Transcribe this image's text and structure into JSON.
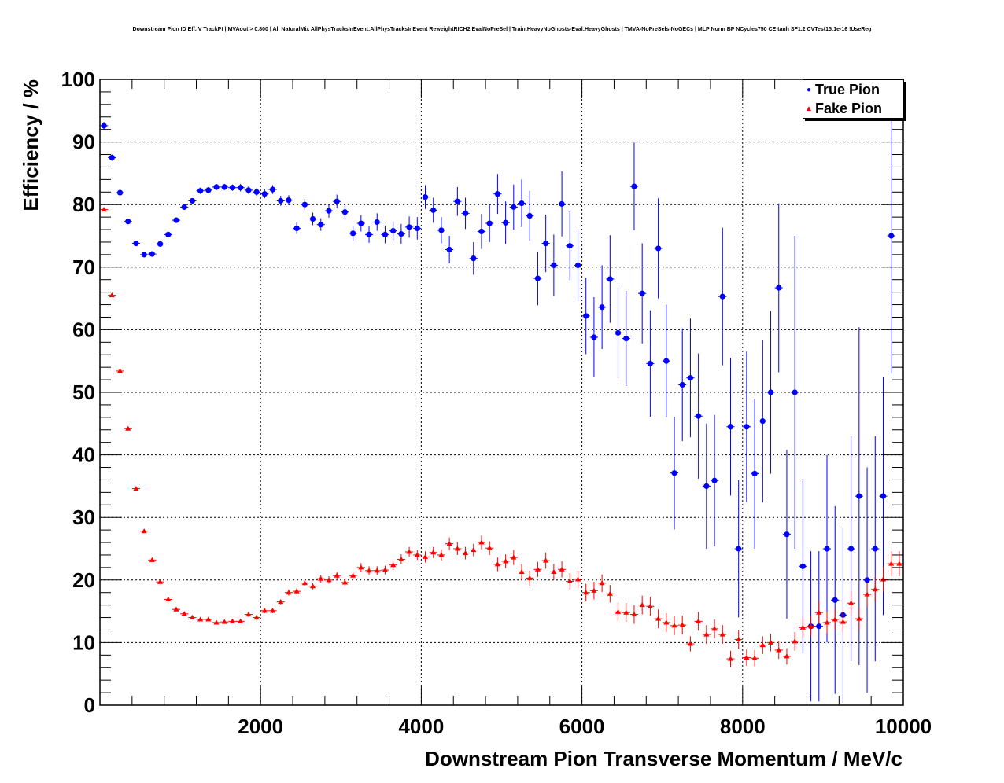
{
  "chart_data": {
    "type": "scatter",
    "title": "Downstream Pion ID Eff. V TrackPt | MVAout > 0.800 | All NaturalMix AllPhysTracksInEvent:AllPhysTracksInEvent ReweightRICH2 EvalNoPreSel | Train:HeavyNoGhosts-Eval:HeavyGhosts | TMVA-NoPreSels-NoGECs | MLP Norm BP NCycles750 CE tanh SF1.2 CVTest15:1e-16 !UseReg",
    "xlabel": "Downstream Pion Transverse Momentum / MeV/c",
    "ylabel": "Efficiency / %",
    "xlim": [
      0,
      10000
    ],
    "ylim": [
      0,
      100
    ],
    "x_ticks": [
      "2000",
      "4000",
      "6000",
      "8000",
      "10000"
    ],
    "y_ticks": [
      "0",
      "10",
      "20",
      "30",
      "40",
      "50",
      "60",
      "70",
      "80",
      "90",
      "100"
    ],
    "grid": true,
    "legend_position": "top-right",
    "series": [
      {
        "name": "True Pion",
        "color": "#0000ff",
        "marker": "circle",
        "points": [
          [
            50,
            92.6,
            0.6
          ],
          [
            150,
            87.5,
            0.5
          ],
          [
            250,
            81.9,
            0.4
          ],
          [
            350,
            77.3,
            0.4
          ],
          [
            450,
            73.8,
            0.4
          ],
          [
            550,
            72.0,
            0.4
          ],
          [
            650,
            72.1,
            0.4
          ],
          [
            750,
            73.7,
            0.4
          ],
          [
            850,
            75.2,
            0.4
          ],
          [
            950,
            77.5,
            0.4
          ],
          [
            1050,
            79.6,
            0.4
          ],
          [
            1150,
            80.6,
            0.4
          ],
          [
            1250,
            82.2,
            0.5
          ],
          [
            1350,
            82.3,
            0.5
          ],
          [
            1450,
            82.8,
            0.5
          ],
          [
            1550,
            82.8,
            0.5
          ],
          [
            1650,
            82.7,
            0.5
          ],
          [
            1750,
            82.7,
            0.6
          ],
          [
            1850,
            82.3,
            0.6
          ],
          [
            1950,
            82.0,
            0.6
          ],
          [
            2050,
            81.7,
            0.7
          ],
          [
            2150,
            82.4,
            0.7
          ],
          [
            2250,
            80.6,
            0.8
          ],
          [
            2350,
            80.7,
            0.8
          ],
          [
            2450,
            76.2,
            0.9
          ],
          [
            2550,
            80.0,
            0.9
          ],
          [
            2650,
            77.7,
            1.0
          ],
          [
            2750,
            76.8,
            1.0
          ],
          [
            2850,
            79.0,
            1.1
          ],
          [
            2950,
            80.5,
            1.1
          ],
          [
            3050,
            78.8,
            1.2
          ],
          [
            3150,
            75.4,
            1.2
          ],
          [
            3250,
            77.0,
            1.3
          ],
          [
            3350,
            75.2,
            1.3
          ],
          [
            3450,
            77.2,
            1.4
          ],
          [
            3550,
            75.2,
            1.4
          ],
          [
            3650,
            75.8,
            1.5
          ],
          [
            3750,
            75.3,
            1.6
          ],
          [
            3850,
            76.4,
            1.7
          ],
          [
            3950,
            76.2,
            1.8
          ],
          [
            4050,
            81.2,
            1.9
          ],
          [
            4150,
            79.1,
            2.0
          ],
          [
            4250,
            75.9,
            2.1
          ],
          [
            4350,
            72.8,
            2.2
          ],
          [
            4450,
            80.5,
            2.3
          ],
          [
            4550,
            78.6,
            2.5
          ],
          [
            4650,
            71.4,
            2.6
          ],
          [
            4750,
            75.7,
            2.8
          ],
          [
            4850,
            77.0,
            3.0
          ],
          [
            4950,
            81.7,
            3.2
          ],
          [
            5050,
            77.1,
            3.4
          ],
          [
            5150,
            79.6,
            3.6
          ],
          [
            5250,
            80.2,
            3.8
          ],
          [
            5350,
            78.2,
            4.0
          ],
          [
            5450,
            68.2,
            4.3
          ],
          [
            5550,
            73.8,
            4.6
          ],
          [
            5650,
            70.3,
            4.9
          ],
          [
            5750,
            80.1,
            5.2
          ],
          [
            5850,
            73.4,
            5.5
          ],
          [
            5950,
            70.3,
            5.8
          ],
          [
            6050,
            62.2,
            6.1
          ],
          [
            6150,
            58.8,
            6.4
          ],
          [
            6250,
            63.6,
            6.7
          ],
          [
            6350,
            68.1,
            7.0
          ],
          [
            6450,
            59.5,
            7.3
          ],
          [
            6550,
            58.6,
            7.6
          ],
          [
            6650,
            82.9,
            7.0
          ],
          [
            6750,
            65.8,
            8.0
          ],
          [
            6850,
            54.6,
            8.5
          ],
          [
            6950,
            73.0,
            8.0
          ],
          [
            7050,
            55.0,
            9.0
          ],
          [
            7150,
            37.1,
            9.0
          ],
          [
            7250,
            51.2,
            9.0
          ],
          [
            7350,
            52.3,
            9.5
          ],
          [
            7450,
            46.2,
            10.0
          ],
          [
            7550,
            35.0,
            10.0
          ],
          [
            7650,
            35.9,
            10.5
          ],
          [
            7750,
            65.3,
            11.0
          ],
          [
            7850,
            44.5,
            11.0
          ],
          [
            7950,
            25.0,
            11.0
          ],
          [
            8050,
            44.5,
            12.0
          ],
          [
            8150,
            37.0,
            12.0
          ],
          [
            8250,
            45.4,
            13.0
          ],
          [
            8350,
            50.0,
            13.0
          ],
          [
            8450,
            66.7,
            13.5
          ],
          [
            8550,
            27.3,
            13.5
          ],
          [
            8650,
            50.0,
            25.0
          ],
          [
            8750,
            22.2,
            14.0
          ],
          [
            8850,
            12.6,
            12.0
          ],
          [
            8950,
            12.6,
            12.0
          ],
          [
            9050,
            25.0,
            15.0
          ],
          [
            9150,
            16.8,
            15.0
          ],
          [
            9250,
            14.4,
            14.0
          ],
          [
            9350,
            25.0,
            18.0
          ],
          [
            9450,
            33.4,
            27.0
          ],
          [
            9550,
            20.0,
            18.0
          ],
          [
            9650,
            25.0,
            18.0
          ],
          [
            9750,
            33.4,
            19.0
          ],
          [
            9850,
            75.0,
            22.0
          ]
        ]
      },
      {
        "name": "Fake Pion",
        "color": "#ff0000",
        "marker": "triangle",
        "points": [
          [
            50,
            79.2,
            0.3
          ],
          [
            150,
            65.5,
            0.3
          ],
          [
            250,
            53.4,
            0.3
          ],
          [
            350,
            44.2,
            0.3
          ],
          [
            450,
            34.6,
            0.3
          ],
          [
            550,
            27.8,
            0.3
          ],
          [
            650,
            23.2,
            0.3
          ],
          [
            750,
            19.7,
            0.3
          ],
          [
            850,
            16.9,
            0.3
          ],
          [
            950,
            15.3,
            0.3
          ],
          [
            1050,
            14.6,
            0.3
          ],
          [
            1150,
            14.0,
            0.3
          ],
          [
            1250,
            13.7,
            0.3
          ],
          [
            1350,
            13.7,
            0.3
          ],
          [
            1450,
            13.2,
            0.3
          ],
          [
            1550,
            13.3,
            0.3
          ],
          [
            1650,
            13.4,
            0.3
          ],
          [
            1750,
            13.4,
            0.3
          ],
          [
            1850,
            14.5,
            0.4
          ],
          [
            1950,
            14.0,
            0.4
          ],
          [
            2050,
            15.1,
            0.4
          ],
          [
            2150,
            15.1,
            0.4
          ],
          [
            2250,
            16.5,
            0.4
          ],
          [
            2350,
            18.0,
            0.5
          ],
          [
            2450,
            18.2,
            0.5
          ],
          [
            2550,
            19.5,
            0.5
          ],
          [
            2650,
            19.0,
            0.5
          ],
          [
            2750,
            20.2,
            0.6
          ],
          [
            2850,
            20.0,
            0.6
          ],
          [
            2950,
            20.7,
            0.6
          ],
          [
            3050,
            19.6,
            0.6
          ],
          [
            3150,
            20.7,
            0.6
          ],
          [
            3250,
            22.0,
            0.7
          ],
          [
            3350,
            21.5,
            0.7
          ],
          [
            3450,
            21.5,
            0.7
          ],
          [
            3550,
            21.6,
            0.7
          ],
          [
            3650,
            22.4,
            0.8
          ],
          [
            3750,
            23.3,
            0.8
          ],
          [
            3850,
            24.5,
            0.8
          ],
          [
            3950,
            24.0,
            0.8
          ],
          [
            4050,
            23.7,
            0.9
          ],
          [
            4150,
            24.4,
            0.9
          ],
          [
            4250,
            24.0,
            0.9
          ],
          [
            4350,
            25.8,
            1.0
          ],
          [
            4450,
            25.0,
            1.0
          ],
          [
            4550,
            24.3,
            1.0
          ],
          [
            4650,
            24.8,
            1.0
          ],
          [
            4750,
            26.0,
            1.1
          ],
          [
            4850,
            25.1,
            1.1
          ],
          [
            4950,
            22.5,
            1.1
          ],
          [
            5050,
            23.0,
            1.1
          ],
          [
            5150,
            23.6,
            1.2
          ],
          [
            5250,
            21.3,
            1.2
          ],
          [
            5350,
            20.3,
            1.2
          ],
          [
            5450,
            21.7,
            1.2
          ],
          [
            5550,
            23.1,
            1.3
          ],
          [
            5650,
            21.3,
            1.3
          ],
          [
            5750,
            21.7,
            1.3
          ],
          [
            5850,
            19.8,
            1.3
          ],
          [
            5950,
            20.1,
            1.4
          ],
          [
            6050,
            18.0,
            1.4
          ],
          [
            6150,
            18.3,
            1.4
          ],
          [
            6250,
            19.5,
            1.4
          ],
          [
            6350,
            17.8,
            1.4
          ],
          [
            6450,
            14.9,
            1.5
          ],
          [
            6550,
            14.8,
            1.5
          ],
          [
            6650,
            14.5,
            1.5
          ],
          [
            6750,
            16.0,
            1.5
          ],
          [
            6850,
            15.8,
            1.5
          ],
          [
            6950,
            13.8,
            1.5
          ],
          [
            7050,
            13.2,
            1.5
          ],
          [
            7150,
            12.7,
            1.5
          ],
          [
            7250,
            12.8,
            1.5
          ],
          [
            7350,
            9.8,
            1.2
          ],
          [
            7450,
            13.4,
            1.5
          ],
          [
            7550,
            11.3,
            1.5
          ],
          [
            7650,
            12.2,
            1.5
          ],
          [
            7750,
            11.3,
            1.5
          ],
          [
            7850,
            7.4,
            1.3
          ],
          [
            7950,
            10.5,
            1.5
          ],
          [
            8050,
            7.6,
            1.3
          ],
          [
            8150,
            7.5,
            1.3
          ],
          [
            8250,
            9.6,
            1.4
          ],
          [
            8350,
            10.0,
            1.4
          ],
          [
            8450,
            8.8,
            1.4
          ],
          [
            8550,
            7.8,
            1.3
          ],
          [
            8650,
            10.2,
            1.5
          ],
          [
            8750,
            12.4,
            1.6
          ],
          [
            8850,
            12.6,
            1.6
          ],
          [
            8950,
            14.8,
            1.8
          ],
          [
            9050,
            13.2,
            1.7
          ],
          [
            9150,
            13.7,
            1.7
          ],
          [
            9250,
            13.3,
            1.7
          ],
          [
            9350,
            16.3,
            1.9
          ],
          [
            9450,
            13.8,
            1.8
          ],
          [
            9550,
            17.7,
            1.9
          ],
          [
            9650,
            18.5,
            2.0
          ],
          [
            9750,
            20.1,
            2.0
          ],
          [
            9850,
            22.6,
            2.0
          ],
          [
            9950,
            22.6,
            2.0
          ]
        ]
      }
    ]
  }
}
